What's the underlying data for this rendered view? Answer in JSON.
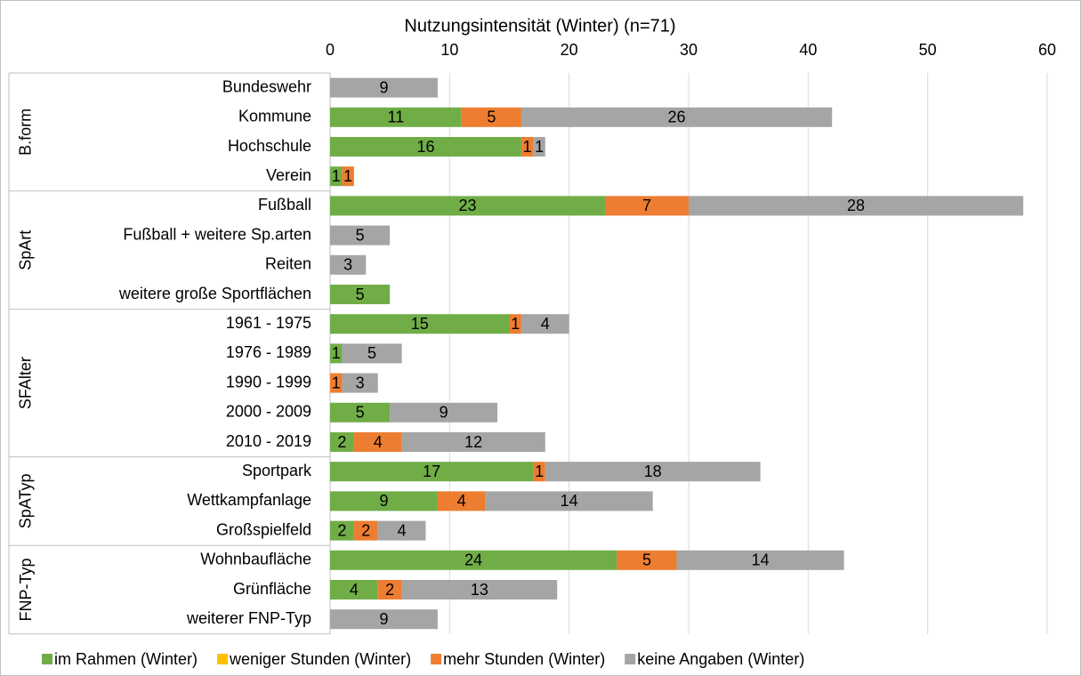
{
  "chart_data": {
    "type": "stacked-bar-horizontal",
    "title": "Nutzungsintensität (Winter) (n=71)",
    "categories": [
      "Bundeswehr",
      "Kommune",
      "Hochschule",
      "Verein",
      "Fußball",
      "Fußball + weitere Sp.arten",
      "Reiten",
      "weitere große Sportflächen",
      "1961 - 1975",
      "1976 - 1989",
      "1990 - 1999",
      "2000 - 2009",
      "2010 - 2019",
      "Sportpark",
      "Wettkampfanlage",
      "Großspielfeld",
      "Wohnbaufläche",
      "Grünfläche",
      "weiterer FNP-Typ"
    ],
    "groups": [
      {
        "name": "B.form",
        "size": 4
      },
      {
        "name": "SpArt",
        "size": 4
      },
      {
        "name": "SFAlter",
        "size": 5
      },
      {
        "name": "SpATyp",
        "size": 3
      },
      {
        "name": "FNP-Typ",
        "size": 3
      }
    ],
    "series": [
      {
        "name": "im Rahmen (Winter)",
        "color": "#70ad47",
        "values": [
          null,
          11,
          16,
          1,
          23,
          null,
          null,
          5,
          15,
          1,
          null,
          5,
          2,
          17,
          9,
          2,
          24,
          4,
          null
        ]
      },
      {
        "name": "weniger Stunden (Winter)",
        "color": "#ffc000",
        "values": [
          null,
          null,
          null,
          null,
          null,
          null,
          null,
          null,
          null,
          null,
          null,
          null,
          null,
          null,
          null,
          null,
          null,
          null,
          null
        ]
      },
      {
        "name": "mehr Stunden (Winter)",
        "color": "#ed7d31",
        "values": [
          null,
          5,
          1,
          1,
          7,
          null,
          null,
          null,
          1,
          null,
          1,
          null,
          4,
          1,
          4,
          2,
          5,
          2,
          null
        ]
      },
      {
        "name": "keine Angaben (Winter)",
        "color": "#a5a5a5",
        "values": [
          9,
          26,
          1,
          null,
          28,
          5,
          3,
          null,
          4,
          5,
          3,
          9,
          12,
          18,
          14,
          4,
          14,
          13,
          9
        ]
      }
    ],
    "xlim": [
      0,
      60
    ],
    "xticks": [
      0,
      10,
      20,
      30,
      40,
      50,
      60
    ],
    "grid": true,
    "legend": "bottom"
  }
}
